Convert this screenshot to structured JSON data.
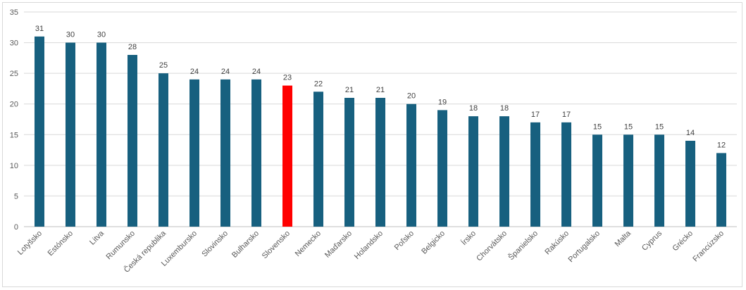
{
  "chart_data": {
    "type": "bar",
    "title": "",
    "xlabel": "",
    "ylabel": "",
    "ylim": [
      0,
      35
    ],
    "yticks": [
      0,
      5,
      10,
      15,
      20,
      25,
      30,
      35
    ],
    "grid": true,
    "legend": "none",
    "colors": {
      "default": "#17607f",
      "highlight": "#ff0000"
    },
    "highlight_category": "Slovensko",
    "categories": [
      "Lotyšsko",
      "Estónsko",
      "Litva",
      "Rumunsko",
      "Česká republika",
      "Luxembursko",
      "Slovinsko",
      "Bulharsko",
      "Slovensko",
      "Nemecko",
      "Maďarsko",
      "Holandsko",
      "Poľsko",
      "Belgicko",
      "Írsko",
      "Chorvátsko",
      "Španielsko",
      "Rakúsko",
      "Portugalsko",
      "Malta",
      "Cyprus",
      "Grécko",
      "Francúzsko"
    ],
    "values": [
      31,
      30,
      30,
      28,
      25,
      24,
      24,
      24,
      23,
      22,
      21,
      21,
      20,
      19,
      18,
      18,
      17,
      17,
      15,
      15,
      15,
      14,
      12
    ]
  }
}
